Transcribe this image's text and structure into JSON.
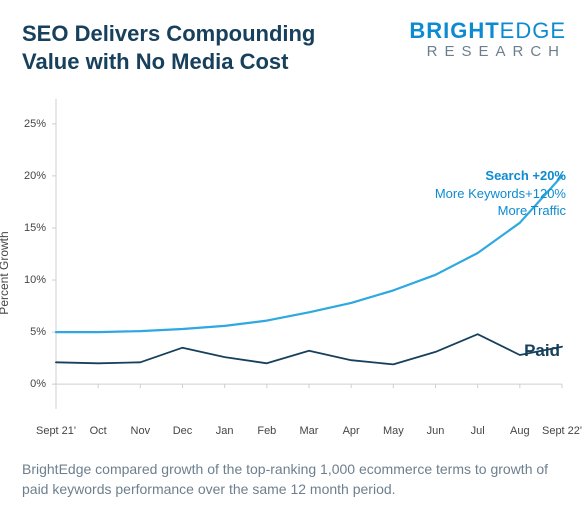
{
  "header": {
    "title": "SEO Delivers Compounding Value with No Media Cost",
    "logo_top_bold": "BRIGHT",
    "logo_top_light": "EDGE",
    "logo_bottom": "RESEARCH"
  },
  "chart": {
    "type": "line",
    "background_color": "#ffffff",
    "axis_color": "#cfcfcf",
    "grid": false,
    "y_axis_title": "Percent Growth",
    "y_axis_title_color": "#454545",
    "ylim": [
      -2,
      27
    ],
    "ytick_values": [
      0,
      5,
      10,
      15,
      20,
      25
    ],
    "ytick_labels": [
      "0%",
      "5%",
      "10%",
      "15%",
      "20%",
      "25%"
    ],
    "tick_label_color": "#454545",
    "tick_fontsize": 11,
    "categories": [
      "Sept 21'",
      "Oct",
      "Nov",
      "Dec",
      "Jan",
      "Feb",
      "Mar",
      "Apr",
      "May",
      "Jun",
      "Jul",
      "Aug",
      "Sept 22'"
    ],
    "series": [
      {
        "name": "Search",
        "color": "#2ea8e0",
        "line_width": 2.2,
        "values": [
          5.0,
          5.0,
          5.1,
          5.3,
          5.6,
          6.1,
          6.9,
          7.8,
          9.0,
          10.5,
          12.6,
          15.5,
          20.0
        ]
      },
      {
        "name": "Paid",
        "color": "#17405c",
        "line_width": 1.8,
        "values": [
          2.1,
          2.0,
          2.1,
          3.5,
          2.6,
          2.0,
          3.2,
          2.3,
          1.9,
          3.1,
          4.8,
          2.8,
          3.6
        ]
      }
    ],
    "annotations": {
      "search": {
        "line1": "Search +20%",
        "line2": "More Keywords+120%",
        "line3": "More Traffic"
      },
      "paid_label": "Paid"
    }
  },
  "caption": "BrightEdge compared growth of the top-ranking 1,000 ecommerce terms to growth of paid keywords performance over the same 12 month period."
}
